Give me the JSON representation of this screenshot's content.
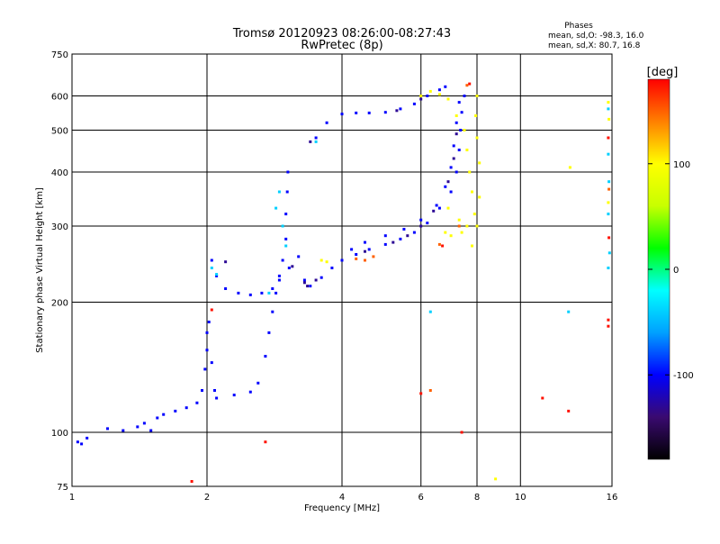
{
  "chart_data": {
    "type": "scatter",
    "title": "Tromsø 20120923 08:26:00-08:27:43",
    "subtitle": "RwPretec (8p)",
    "xlabel": "Frequency [MHz]",
    "ylabel": "Stationary phase Virtual Height [km]",
    "x_scale": "log",
    "y_scale": "log",
    "xlim": [
      1,
      16
    ],
    "ylim": [
      75,
      750
    ],
    "x_ticks": [
      1,
      2,
      4,
      6,
      8,
      10,
      16
    ],
    "y_ticks": [
      75,
      100,
      200,
      300,
      400,
      500,
      600,
      750
    ],
    "grid": true,
    "phase_info": {
      "title": "Phases",
      "line1": "mean, sd,O: -98.3, 16.0",
      "line2": "mean, sd,X:  80.7, 16.8"
    },
    "colorbar": {
      "unit_label": "[deg]",
      "range": [
        -180,
        180
      ],
      "ticks": [
        "100",
        "0",
        "-100"
      ],
      "tick_values": [
        100,
        0,
        -100
      ],
      "colormap": [
        "#000000",
        "#3a0a70",
        "#0000ff",
        "#00a0ff",
        "#00ffff",
        "#00ff00",
        "#c8ff00",
        "#ffff00",
        "#ff8000",
        "#ff0000"
      ]
    },
    "series": [
      {
        "color_hint": "blue",
        "phase": -100,
        "points": [
          [
            1.03,
            95
          ],
          [
            1.05,
            94
          ],
          [
            1.08,
            97
          ],
          [
            1.2,
            102
          ],
          [
            1.3,
            101
          ],
          [
            1.4,
            103
          ],
          [
            1.45,
            105
          ],
          [
            1.5,
            101
          ],
          [
            1.55,
            108
          ],
          [
            1.6,
            110
          ],
          [
            1.7,
            112
          ],
          [
            1.8,
            114
          ],
          [
            1.9,
            117
          ],
          [
            1.95,
            125
          ],
          [
            1.98,
            140
          ],
          [
            2.0,
            155
          ],
          [
            2.0,
            170
          ],
          [
            2.02,
            180
          ],
          [
            2.05,
            145
          ],
          [
            2.08,
            125
          ],
          [
            2.1,
            120
          ],
          [
            2.3,
            122
          ],
          [
            2.5,
            124
          ],
          [
            2.6,
            130
          ],
          [
            2.7,
            150
          ],
          [
            2.75,
            170
          ],
          [
            2.8,
            190
          ],
          [
            2.85,
            210
          ],
          [
            2.9,
            230
          ],
          [
            2.95,
            250
          ],
          [
            3.0,
            280
          ],
          [
            3.0,
            320
          ],
          [
            3.02,
            360
          ],
          [
            3.03,
            400
          ],
          [
            2.05,
            250
          ],
          [
            2.1,
            230
          ],
          [
            2.2,
            215
          ],
          [
            2.35,
            210
          ],
          [
            2.5,
            208
          ],
          [
            2.65,
            210
          ],
          [
            2.8,
            215
          ],
          [
            2.9,
            225
          ],
          [
            3.05,
            240
          ],
          [
            3.2,
            255
          ],
          [
            3.3,
            225
          ],
          [
            3.4,
            218
          ],
          [
            3.6,
            228
          ],
          [
            3.8,
            240
          ],
          [
            4.0,
            250
          ],
          [
            4.3,
            258
          ],
          [
            4.6,
            265
          ],
          [
            5.0,
            272
          ],
          [
            5.4,
            280
          ],
          [
            5.8,
            290
          ],
          [
            6.2,
            305
          ],
          [
            6.6,
            330
          ],
          [
            7.0,
            360
          ],
          [
            7.2,
            400
          ],
          [
            7.3,
            450
          ],
          [
            7.35,
            500
          ],
          [
            7.4,
            550
          ],
          [
            7.5,
            600
          ],
          [
            4.2,
            265
          ],
          [
            4.5,
            275
          ],
          [
            5.0,
            285
          ],
          [
            5.5,
            295
          ],
          [
            6.0,
            310
          ],
          [
            6.5,
            335
          ],
          [
            6.8,
            370
          ],
          [
            7.0,
            410
          ],
          [
            7.1,
            460
          ],
          [
            7.2,
            520
          ],
          [
            7.3,
            580
          ],
          [
            3.5,
            480
          ],
          [
            3.7,
            520
          ],
          [
            4.0,
            545
          ],
          [
            4.3,
            548
          ],
          [
            4.6,
            548
          ],
          [
            5.0,
            550
          ],
          [
            5.4,
            560
          ],
          [
            5.8,
            575
          ],
          [
            6.2,
            600
          ],
          [
            6.6,
            620
          ],
          [
            6.8,
            630
          ]
        ]
      },
      {
        "color_hint": "purple",
        "phase": -130,
        "points": [
          [
            3.3,
            222
          ],
          [
            3.35,
            218
          ],
          [
            3.5,
            225
          ],
          [
            4.5,
            262
          ],
          [
            5.2,
            275
          ],
          [
            5.6,
            285
          ],
          [
            6.0,
            300
          ],
          [
            6.4,
            325
          ],
          [
            6.9,
            380
          ],
          [
            7.1,
            430
          ],
          [
            7.2,
            490
          ],
          [
            3.4,
            470
          ],
          [
            5.3,
            555
          ],
          [
            6.0,
            590
          ],
          [
            2.2,
            248
          ],
          [
            3.1,
            242
          ]
        ]
      },
      {
        "color_hint": "cyan",
        "phase": -40,
        "points": [
          [
            2.05,
            240
          ],
          [
            2.1,
            232
          ],
          [
            2.85,
            330
          ],
          [
            2.9,
            360
          ],
          [
            2.95,
            300
          ],
          [
            3.0,
            270
          ],
          [
            2.75,
            210
          ],
          [
            6.3,
            190
          ],
          [
            12.8,
            190
          ],
          [
            3.5,
            470
          ],
          [
            15.7,
            560
          ],
          [
            15.7,
            440
          ],
          [
            15.75,
            380
          ],
          [
            15.7,
            320
          ],
          [
            15.8,
            260
          ],
          [
            15.7,
            240
          ]
        ]
      },
      {
        "color_hint": "yellow",
        "phase": 100,
        "points": [
          [
            3.6,
            250
          ],
          [
            3.7,
            248
          ],
          [
            6.0,
            600
          ],
          [
            6.3,
            615
          ],
          [
            6.6,
            605
          ],
          [
            6.9,
            590
          ],
          [
            7.2,
            540
          ],
          [
            7.5,
            500
          ],
          [
            7.6,
            450
          ],
          [
            7.7,
            400
          ],
          [
            7.8,
            360
          ],
          [
            7.9,
            320
          ],
          [
            8.0,
            300
          ],
          [
            8.1,
            350
          ],
          [
            8.1,
            420
          ],
          [
            8.0,
            480
          ],
          [
            7.95,
            540
          ],
          [
            8.0,
            600
          ],
          [
            7.6,
            300
          ],
          [
            7.4,
            290
          ],
          [
            7.0,
            285
          ],
          [
            6.8,
            290
          ],
          [
            7.8,
            270
          ],
          [
            7.3,
            310
          ],
          [
            6.9,
            330
          ],
          [
            8.8,
            78
          ],
          [
            12.9,
            410
          ],
          [
            15.7,
            580
          ],
          [
            15.75,
            530
          ],
          [
            15.7,
            340
          ]
        ]
      },
      {
        "color_hint": "orange",
        "phase": 150,
        "points": [
          [
            4.3,
            252
          ],
          [
            4.5,
            250
          ],
          [
            4.7,
            255
          ],
          [
            6.3,
            125
          ],
          [
            6.6,
            272
          ],
          [
            7.3,
            300
          ],
          [
            7.6,
            635
          ],
          [
            15.75,
            365
          ]
        ]
      },
      {
        "color_hint": "red",
        "phase": 175,
        "points": [
          [
            1.85,
            77
          ],
          [
            2.05,
            192
          ],
          [
            2.7,
            95
          ],
          [
            6.0,
            123
          ],
          [
            6.7,
            270
          ],
          [
            7.4,
            100
          ],
          [
            7.7,
            640
          ],
          [
            11.2,
            120
          ],
          [
            12.8,
            112
          ],
          [
            15.7,
            182
          ],
          [
            15.7,
            176
          ],
          [
            15.75,
            282
          ],
          [
            15.7,
            480
          ]
        ]
      }
    ]
  }
}
